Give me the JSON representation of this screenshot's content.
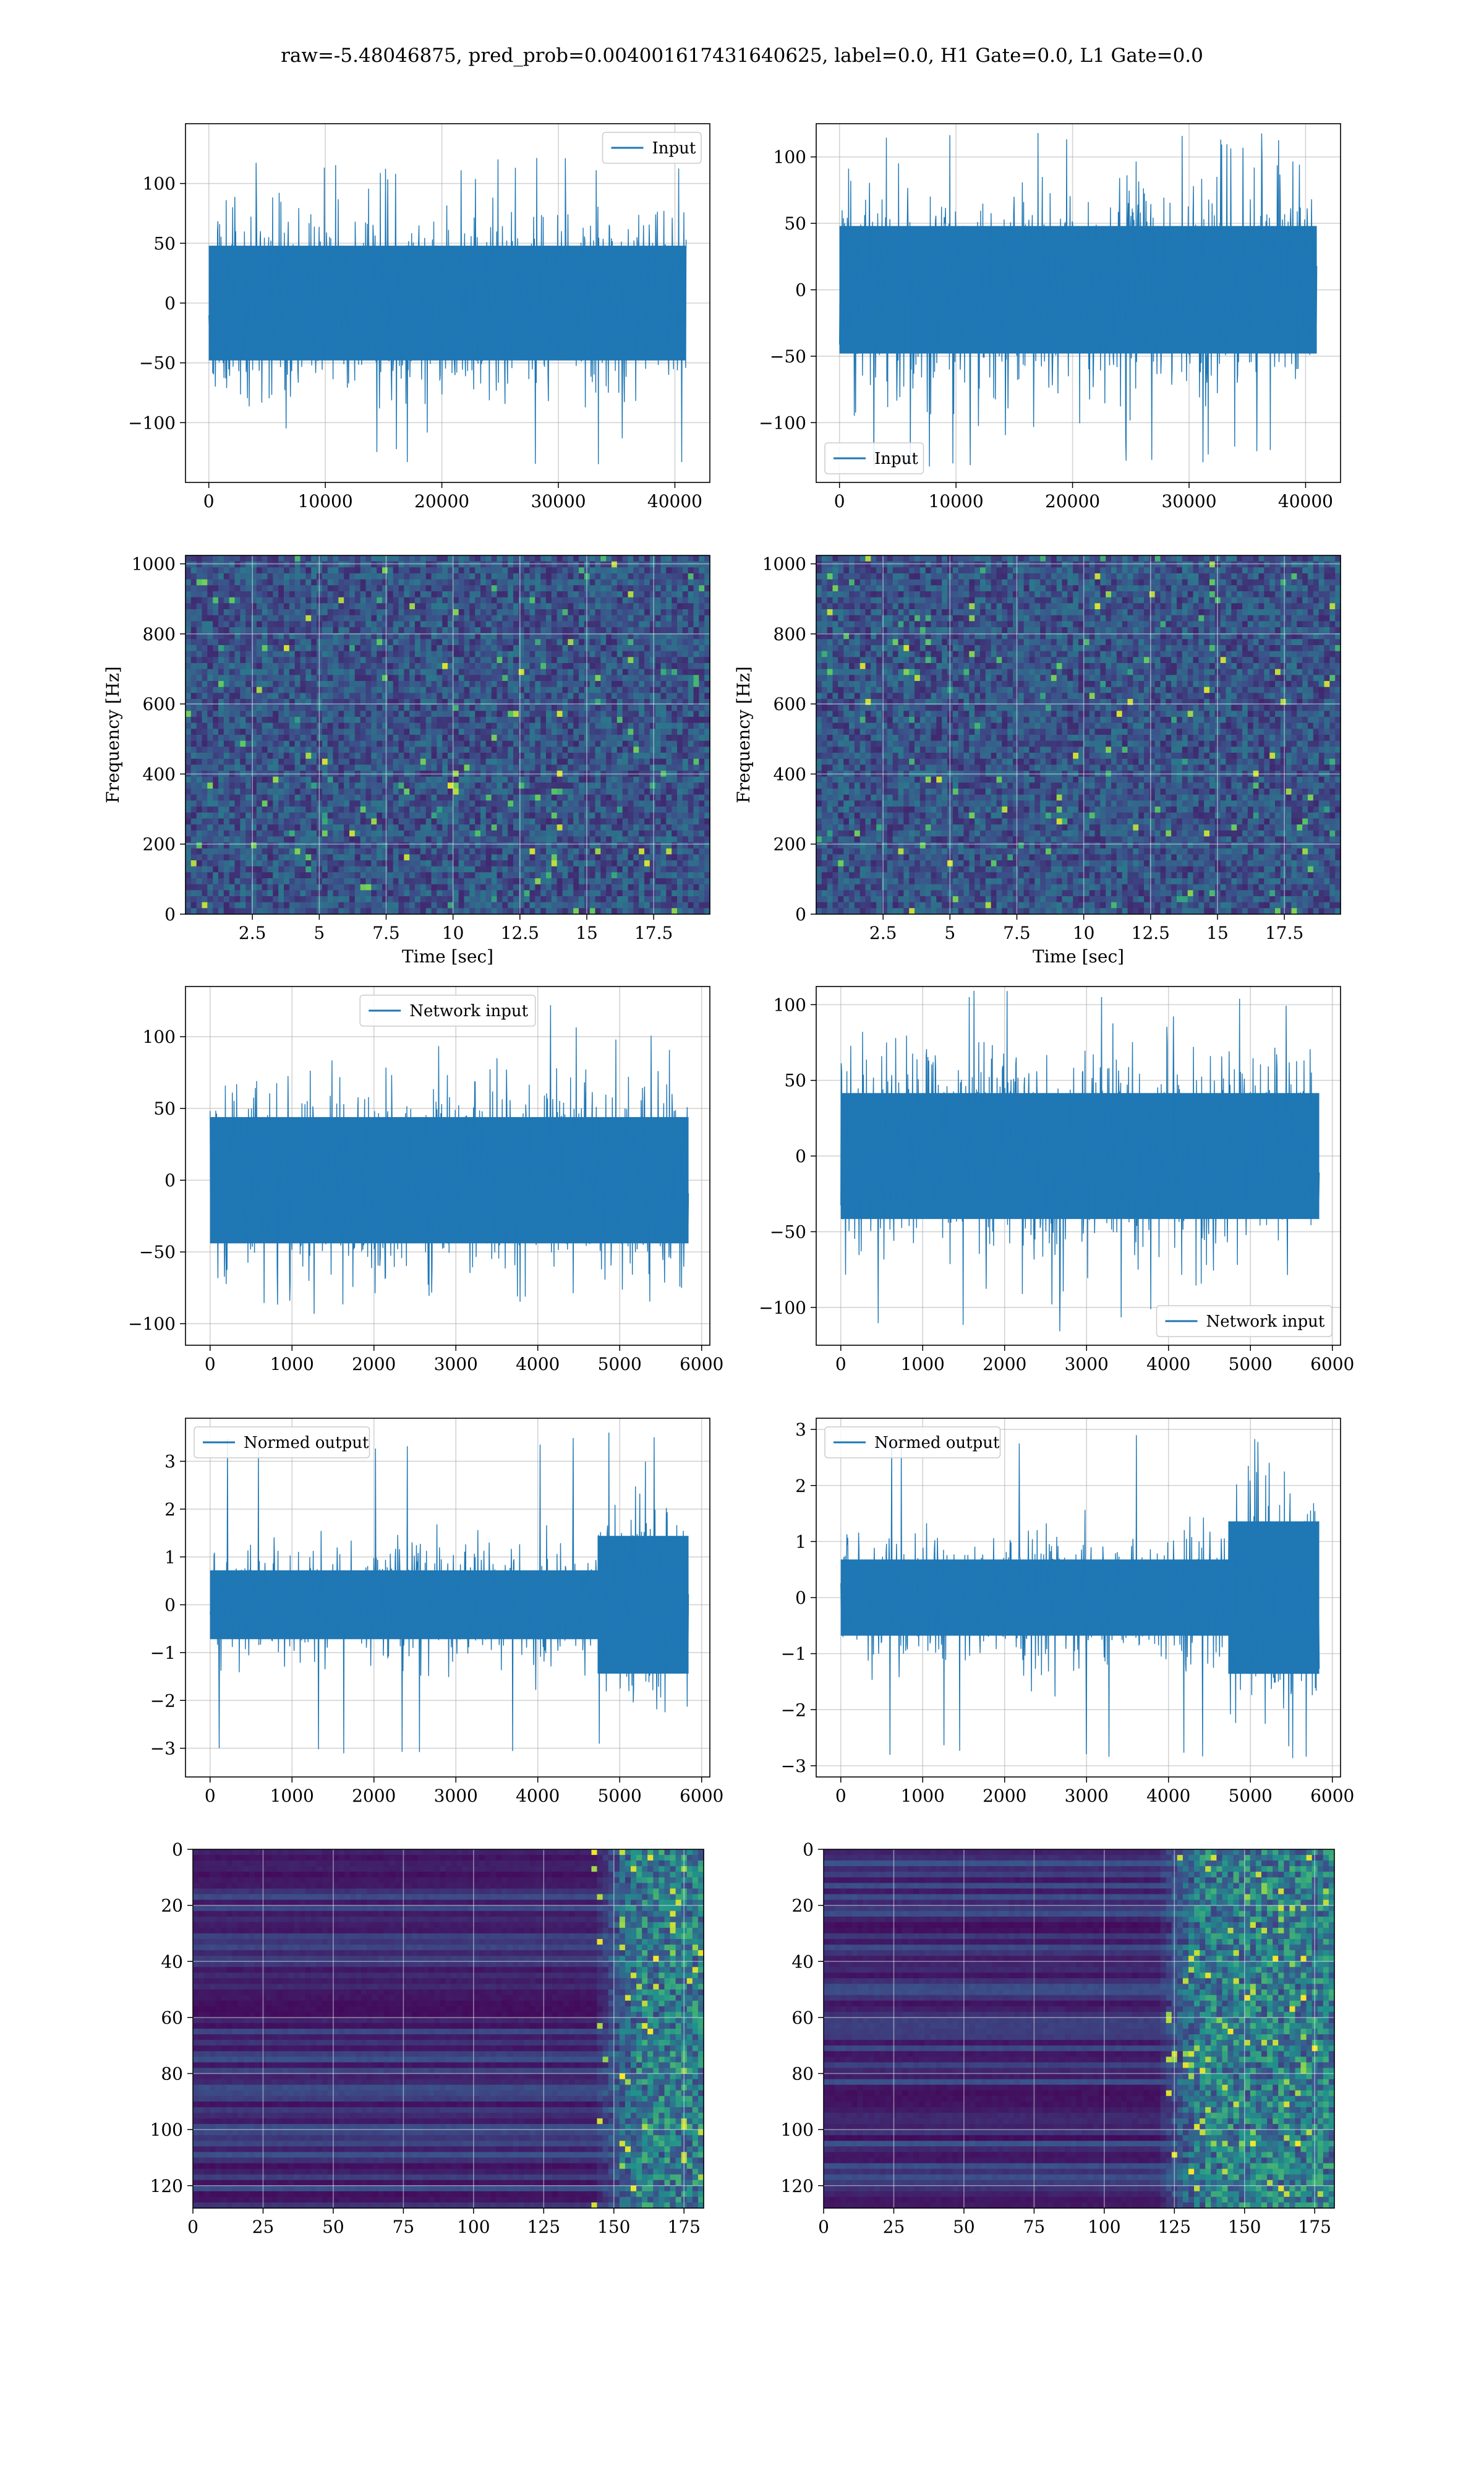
{
  "figure": {
    "title": "raw=-5.48046875, pred_prob=0.004001617431640625, label=0.0, H1 Gate=0.0, L1 Gate=0.0"
  },
  "colors": {
    "signal": "#1f77b4",
    "grid": "#b0b0b0",
    "viridis_low": "#440154",
    "viridis_mid": "#21908d",
    "viridis_high": "#fde725"
  },
  "chart_data": [
    {
      "id": "input-left",
      "type": "line",
      "legend": "Input",
      "legend_loc": "upper right",
      "xlim": [
        -2000,
        43000
      ],
      "ylim": [
        -150,
        150
      ],
      "xticks": [
        0,
        10000,
        20000,
        30000,
        40000
      ],
      "yticks": [
        -100,
        -50,
        0,
        50,
        100
      ],
      "series": [
        {
          "name": "Input",
          "n_samples": 40960,
          "amplitude": 60,
          "peak_max": 122,
          "peak_min": -135
        }
      ],
      "grid": true,
      "xlabel": "",
      "ylabel": ""
    },
    {
      "id": "input-right",
      "type": "line",
      "legend": "Input",
      "legend_loc": "lower left",
      "xlim": [
        -2000,
        43000
      ],
      "ylim": [
        -145,
        125
      ],
      "xticks": [
        0,
        10000,
        20000,
        30000,
        40000
      ],
      "yticks": [
        -100,
        -50,
        0,
        50,
        100
      ],
      "series": [
        {
          "name": "Input",
          "n_samples": 40960,
          "amplitude": 60,
          "peak_max": 118,
          "peak_min": -133
        }
      ],
      "grid": true,
      "xlabel": "",
      "ylabel": ""
    },
    {
      "id": "spec-left",
      "type": "heatmap",
      "subtype": "spectrogram",
      "xlim": [
        0,
        19.6
      ],
      "ylim": [
        0,
        1024
      ],
      "xticks": [
        2.5,
        5.0,
        7.5,
        10.0,
        12.5,
        15.0,
        17.5
      ],
      "yticks": [
        0,
        200,
        400,
        600,
        800,
        1000
      ],
      "xlabel": "Time [sec]",
      "ylabel": "Frequency [Hz]",
      "colormap": "viridis",
      "grid": true
    },
    {
      "id": "spec-right",
      "type": "heatmap",
      "subtype": "spectrogram",
      "xlim": [
        0,
        19.6
      ],
      "ylim": [
        0,
        1024
      ],
      "xticks": [
        2.5,
        5.0,
        7.5,
        10.0,
        12.5,
        15.0,
        17.5
      ],
      "yticks": [
        0,
        200,
        400,
        600,
        800,
        1000
      ],
      "xlabel": "Time [sec]",
      "ylabel": "Frequency [Hz]",
      "colormap": "viridis",
      "grid": true
    },
    {
      "id": "netin-left",
      "type": "line",
      "legend": "Network input",
      "legend_loc": "upper center",
      "xlim": [
        -300,
        6100
      ],
      "ylim": [
        -115,
        135
      ],
      "xticks": [
        0,
        1000,
        2000,
        3000,
        4000,
        5000,
        6000
      ],
      "yticks": [
        -100,
        -50,
        0,
        50,
        100
      ],
      "series": [
        {
          "name": "Network input",
          "n_samples": 5840,
          "amplitude": 55,
          "peak_max": 125,
          "peak_min": -102
        }
      ],
      "grid": true,
      "xlabel": "",
      "ylabel": ""
    },
    {
      "id": "netin-right",
      "type": "line",
      "legend": "Network input",
      "legend_loc": "lower right",
      "xlim": [
        -300,
        6100
      ],
      "ylim": [
        -125,
        112
      ],
      "xticks": [
        0,
        1000,
        2000,
        3000,
        4000,
        5000,
        6000
      ],
      "yticks": [
        -100,
        -50,
        0,
        50,
        100
      ],
      "series": [
        {
          "name": "Network input",
          "n_samples": 5840,
          "amplitude": 52,
          "peak_max": 110,
          "peak_min": -118
        }
      ],
      "grid": true,
      "xlabel": "",
      "ylabel": ""
    },
    {
      "id": "normed-left",
      "type": "line",
      "legend": "Normed output",
      "legend_loc": "upper left",
      "xlim": [
        -300,
        6100
      ],
      "ylim": [
        -3.6,
        3.9
      ],
      "xticks": [
        0,
        1000,
        2000,
        3000,
        4000,
        5000,
        6000
      ],
      "yticks": [
        -3,
        -2,
        -1,
        0,
        1,
        2,
        3
      ],
      "series": [
        {
          "name": "Normed output",
          "n_samples": 5840,
          "amplitude": 0.9,
          "peak_max": 3.6,
          "peak_min": -3.3
        }
      ],
      "grid": true,
      "xlabel": "",
      "ylabel": ""
    },
    {
      "id": "normed-right",
      "type": "line",
      "legend": "Normed output",
      "legend_loc": "upper left",
      "xlim": [
        -300,
        6100
      ],
      "ylim": [
        -3.2,
        3.2
      ],
      "xticks": [
        0,
        1000,
        2000,
        3000,
        4000,
        5000,
        6000
      ],
      "yticks": [
        -3,
        -2,
        -1,
        0,
        1,
        2,
        3
      ],
      "series": [
        {
          "name": "Normed output",
          "n_samples": 5840,
          "amplitude": 0.85,
          "peak_max": 2.9,
          "peak_min": -2.9
        }
      ],
      "grid": true,
      "xlabel": "",
      "ylabel": ""
    },
    {
      "id": "feat-left",
      "type": "heatmap",
      "subtype": "feature-map",
      "xlim": [
        0,
        182
      ],
      "ylim": [
        128,
        0
      ],
      "xticks": [
        0,
        25,
        50,
        75,
        100,
        125,
        150,
        175
      ],
      "yticks": [
        0,
        20,
        40,
        60,
        80,
        100,
        120
      ],
      "colormap": "viridis",
      "onset": 150,
      "grid": true,
      "xlabel": "",
      "ylabel": ""
    },
    {
      "id": "feat-right",
      "type": "heatmap",
      "subtype": "feature-map",
      "xlim": [
        0,
        182
      ],
      "ylim": [
        128,
        0
      ],
      "xticks": [
        0,
        25,
        50,
        75,
        100,
        125,
        150,
        175
      ],
      "yticks": [
        0,
        20,
        40,
        60,
        80,
        100,
        120
      ],
      "colormap": "viridis",
      "onset": 125,
      "grid": true,
      "xlabel": "",
      "ylabel": ""
    }
  ]
}
